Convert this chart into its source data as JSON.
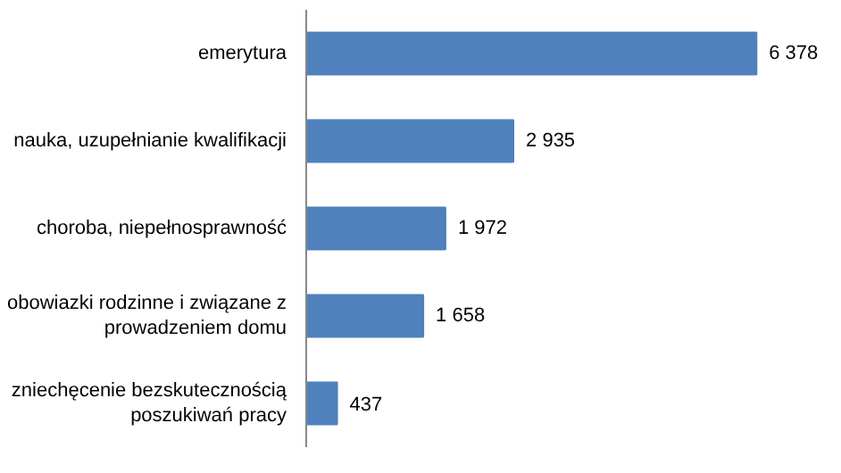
{
  "chart_data": {
    "type": "bar",
    "orientation": "horizontal",
    "categories": [
      "emerytura",
      "nauka, uzupełnianie kwalifikacji",
      "choroba, niepełnosprawność",
      "obowiazki rodzinne i związane z prowadzeniem domu",
      "zniechęcenie bezskutecznością poszukiwań pracy"
    ],
    "values": [
      6378,
      2935,
      1972,
      1658,
      437
    ],
    "color": "#4f81bd",
    "data_labels": true,
    "tick_labels": "y",
    "grid": false
  }
}
